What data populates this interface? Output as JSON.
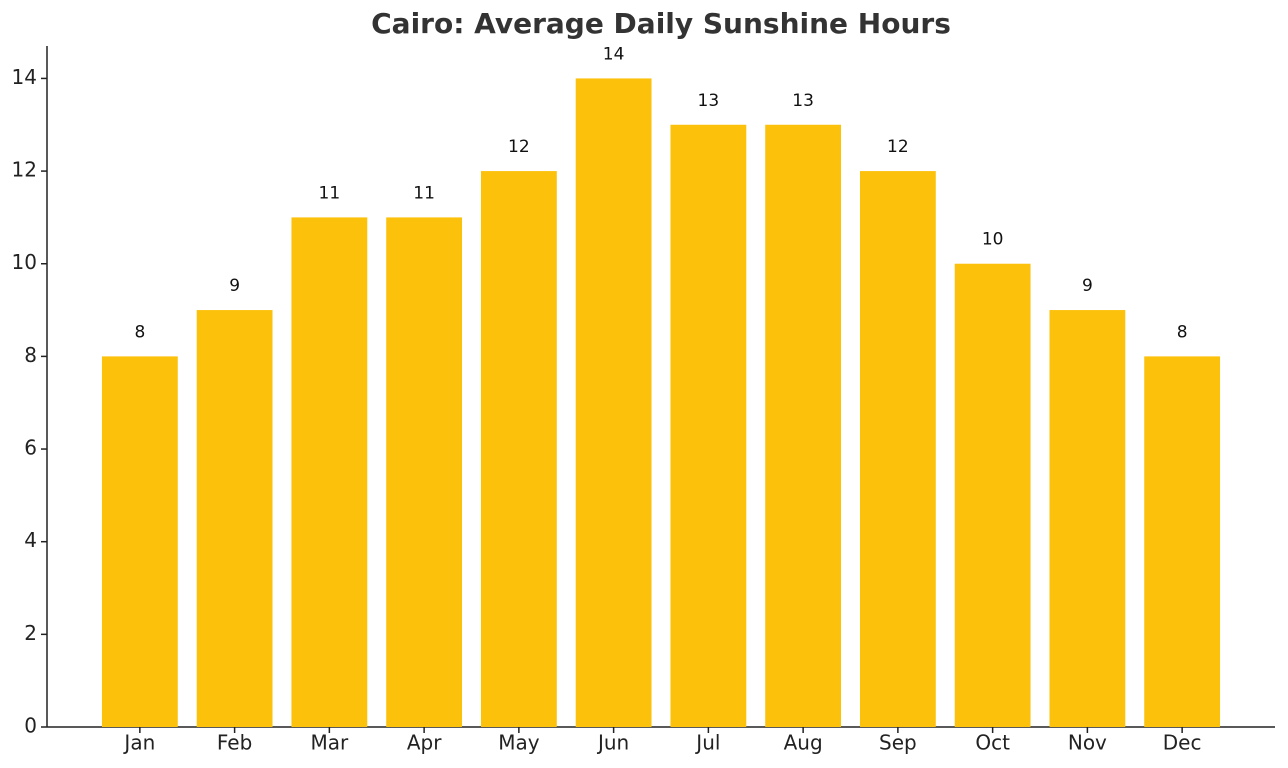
{
  "chart_data": {
    "type": "bar",
    "title": "Cairo: Average Daily Sunshine Hours",
    "categories": [
      "Jan",
      "Feb",
      "Mar",
      "Apr",
      "May",
      "Jun",
      "Jul",
      "Aug",
      "Sep",
      "Oct",
      "Nov",
      "Dec"
    ],
    "values": [
      8,
      9,
      11,
      11,
      12,
      14,
      13,
      13,
      12,
      10,
      9,
      8
    ],
    "color": "#fcc10b",
    "ylim": [
      0,
      14.7
    ],
    "yticks": [
      0,
      2,
      4,
      6,
      8,
      10,
      12,
      14
    ],
    "grid": false
  }
}
